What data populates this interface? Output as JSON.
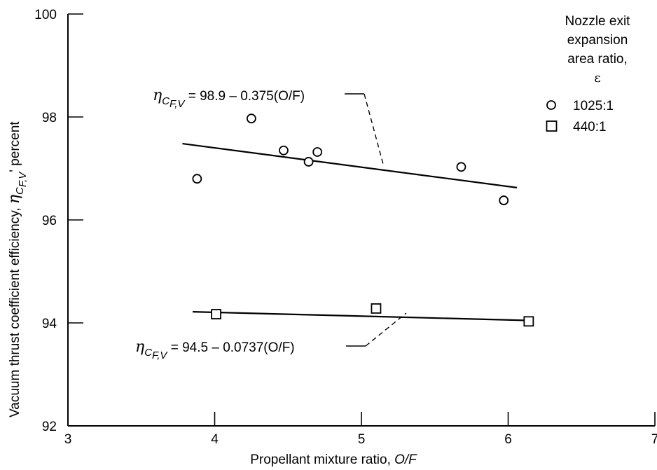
{
  "chart_data": {
    "type": "scatter",
    "xlabel": {
      "main": "Propellant mixture ratio, ",
      "italic": "O/F"
    },
    "ylabel": {
      "main": "Vacuum thrust coefficient efficiency, ",
      "symbol": "η",
      "sub": "C",
      "subsub": "F,V",
      "suffix": "' percent"
    },
    "xlim": [
      3,
      7
    ],
    "ylim": [
      92,
      100
    ],
    "xticks": [
      "3",
      "4",
      "5",
      "6",
      "7"
    ],
    "yticks": [
      "92",
      "94",
      "96",
      "98",
      "100"
    ],
    "legend": {
      "title_lines": [
        "Nozzle exit",
        "expansion",
        "area ratio,",
        "ε"
      ],
      "placement": "top-right",
      "items": [
        {
          "marker": "circle",
          "label": "1025:1"
        },
        {
          "marker": "square",
          "label": "440:1"
        }
      ]
    },
    "series": [
      {
        "name": "1025:1",
        "marker": "circle",
        "points": [
          {
            "x": 3.88,
            "y": 96.8
          },
          {
            "x": 4.25,
            "y": 97.97
          },
          {
            "x": 4.47,
            "y": 97.35
          },
          {
            "x": 4.64,
            "y": 97.13
          },
          {
            "x": 4.7,
            "y": 97.32
          },
          {
            "x": 5.68,
            "y": 97.03
          },
          {
            "x": 5.97,
            "y": 96.38
          }
        ],
        "fit": {
          "x_range": [
            3.78,
            6.06
          ],
          "intercept": 98.9,
          "slope": -0.375
        },
        "equation": {
          "symbol": "η",
          "sub": "C",
          "subsub": "F,V",
          "rhs": " = 98.9 – 0.375(O/F)"
        }
      },
      {
        "name": "440:1",
        "marker": "square",
        "points": [
          {
            "x": 4.01,
            "y": 94.17
          },
          {
            "x": 5.1,
            "y": 94.28
          },
          {
            "x": 6.14,
            "y": 94.03
          }
        ],
        "fit": {
          "x_range": [
            3.85,
            6.16
          ],
          "intercept": 94.5,
          "slope": -0.0737
        },
        "equation": {
          "symbol": "η",
          "sub": "C",
          "subsub": "F,V",
          "rhs": " = 94.5 – 0.0737(O/F)"
        }
      }
    ]
  }
}
